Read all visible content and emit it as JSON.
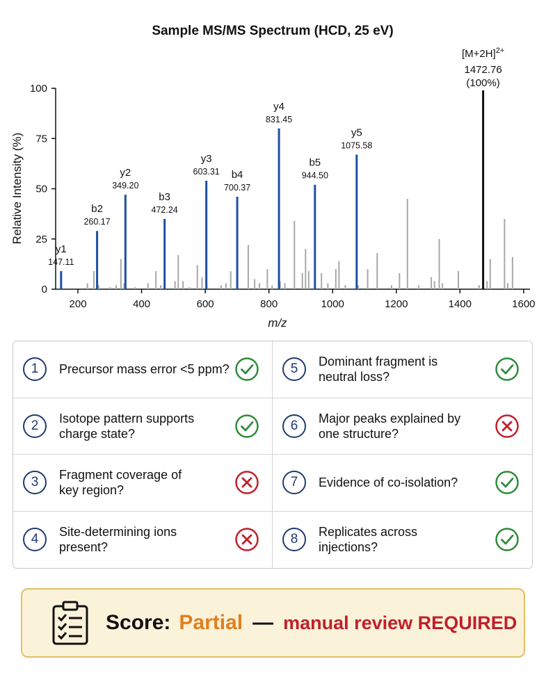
{
  "chart_data": {
    "type": "bar",
    "title": "Sample MS/MS Spectrum (HCD, 25 eV)",
    "xlabel": "m/z",
    "ylabel": "Relative Intensity (%)",
    "xlim": [
      130,
      1620
    ],
    "ylim": [
      0,
      100
    ],
    "xticks": [
      200,
      400,
      600,
      800,
      1000,
      1200,
      1400,
      1600
    ],
    "yticks": [
      0,
      25,
      50,
      75,
      100
    ],
    "grid": false,
    "colors": {
      "labeled": "#1f4ea3",
      "precursor": "#111111",
      "background": "#a8a8a8"
    },
    "labeled_ions": [
      {
        "name": "y1",
        "mz": "147.11",
        "x": 147.11,
        "y": 9
      },
      {
        "name": "b2",
        "mz": "260.17",
        "x": 260.17,
        "y": 29
      },
      {
        "name": "y2",
        "mz": "349.20",
        "x": 349.2,
        "y": 47
      },
      {
        "name": "b3",
        "mz": "472.24",
        "x": 472.24,
        "y": 35
      },
      {
        "name": "y3",
        "mz": "603.31",
        "x": 603.31,
        "y": 54
      },
      {
        "name": "b4",
        "mz": "700.37",
        "x": 700.37,
        "y": 46
      },
      {
        "name": "y4",
        "mz": "831.45",
        "x": 831.45,
        "y": 80
      },
      {
        "name": "b5",
        "mz": "944.50",
        "x": 944.5,
        "y": 52
      },
      {
        "name": "y5",
        "mz": "1075.58",
        "x": 1075.58,
        "y": 67
      }
    ],
    "precursor": {
      "name": "[M+2H]",
      "superscript": "2+",
      "mz": "1472.76",
      "intensity_label": "(100%)",
      "x": 1472.76,
      "y": 100
    },
    "background_peaks": [
      [
        230,
        3
      ],
      [
        250,
        9
      ],
      [
        265,
        2
      ],
      [
        300,
        1
      ],
      [
        320,
        2
      ],
      [
        335,
        15
      ],
      [
        345,
        3
      ],
      [
        380,
        1
      ],
      [
        420,
        3
      ],
      [
        445,
        9
      ],
      [
        460,
        2
      ],
      [
        505,
        4
      ],
      [
        515,
        17
      ],
      [
        530,
        4
      ],
      [
        550,
        1
      ],
      [
        575,
        12
      ],
      [
        590,
        6
      ],
      [
        605,
        2
      ],
      [
        650,
        2
      ],
      [
        665,
        3
      ],
      [
        680,
        9
      ],
      [
        700,
        2
      ],
      [
        735,
        22
      ],
      [
        755,
        5
      ],
      [
        770,
        3
      ],
      [
        795,
        10
      ],
      [
        810,
        2
      ],
      [
        835,
        4
      ],
      [
        850,
        3
      ],
      [
        880,
        34
      ],
      [
        905,
        8
      ],
      [
        915,
        20
      ],
      [
        925,
        9
      ],
      [
        965,
        8
      ],
      [
        985,
        3
      ],
      [
        1010,
        10
      ],
      [
        1020,
        14
      ],
      [
        1040,
        2
      ],
      [
        1080,
        2
      ],
      [
        1110,
        10
      ],
      [
        1140,
        18
      ],
      [
        1185,
        2
      ],
      [
        1210,
        8
      ],
      [
        1235,
        45
      ],
      [
        1270,
        2
      ],
      [
        1310,
        6
      ],
      [
        1320,
        4
      ],
      [
        1335,
        25
      ],
      [
        1345,
        3
      ],
      [
        1395,
        9
      ],
      [
        1460,
        2
      ],
      [
        1485,
        4
      ],
      [
        1495,
        15
      ],
      [
        1540,
        35
      ],
      [
        1550,
        3
      ],
      [
        1565,
        16
      ]
    ]
  },
  "checklist": [
    {
      "number": "1",
      "text": "Precursor mass error <5 ppm?",
      "status": "pass"
    },
    {
      "number": "5",
      "text": "Dominant fragment is\nneutral loss?",
      "status": "pass"
    },
    {
      "number": "2",
      "text": "Isotope pattern supports\ncharge state?",
      "status": "pass"
    },
    {
      "number": "6",
      "text": "Major peaks explained by\none structure?",
      "status": "fail"
    },
    {
      "number": "3",
      "text": "Fragment coverage of\nkey region?",
      "status": "fail"
    },
    {
      "number": "7",
      "text": "Evidence of co-isolation?",
      "status": "pass"
    },
    {
      "number": "4",
      "text": "Site-determining ions\npresent?",
      "status": "fail"
    },
    {
      "number": "8",
      "text": "Replicates across\ninjections?",
      "status": "pass"
    }
  ],
  "score": {
    "label": "Score:",
    "value": "Partial",
    "dash": "—",
    "note": "manual review REQUIRED",
    "icon": "clipboard-checklist-icon",
    "colors": {
      "value": "#e07f1c",
      "note": "#c0202a",
      "box": "#fbf2da",
      "border": "#e2bf62"
    }
  },
  "status_colors": {
    "pass": "#2e8b3a",
    "fail": "#c0202a"
  }
}
